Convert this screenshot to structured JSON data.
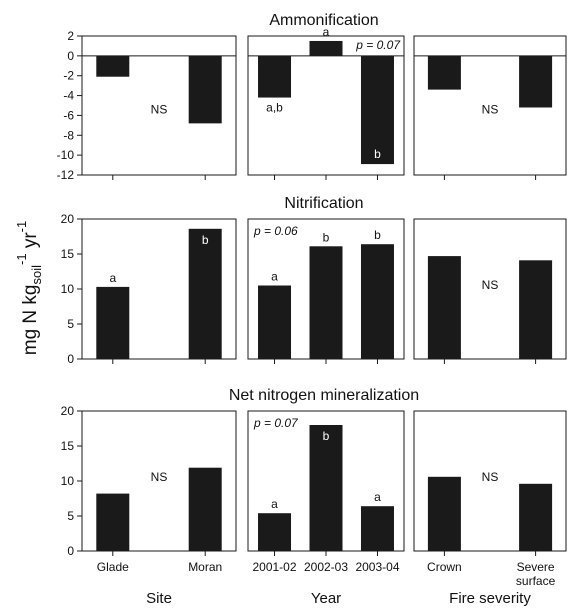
{
  "y_axis_label": {
    "main": "mg N kg",
    "subscript": "soil",
    "sup1": "-1",
    "mid": " yr",
    "sup2": "-1"
  },
  "group_labels": [
    "Site",
    "Year",
    "Fire severity"
  ],
  "colors": {
    "bar": "#1a1a1a",
    "axis": "#1a1a1a",
    "background": "#ffffff"
  },
  "chart_data": [
    {
      "type": "bar",
      "title": "Ammonification",
      "ylim": [
        -12,
        2
      ],
      "yticks": [
        2,
        0,
        -2,
        -4,
        -6,
        -8,
        -10,
        -12
      ],
      "zero_line": true,
      "panels": [
        {
          "group": "Site",
          "categories": [
            "Glade",
            "Moran"
          ],
          "values": [
            -2.1,
            -6.8
          ],
          "bar_labels": [
            "",
            ""
          ],
          "note": "NS",
          "p_value": ""
        },
        {
          "group": "Year",
          "categories": [
            "2001-02",
            "2002-03",
            "2003-04"
          ],
          "values": [
            -4.2,
            1.5,
            -10.9
          ],
          "bar_labels": [
            "a,b",
            "a",
            "b"
          ],
          "note": "",
          "p_value": "p = 0.07"
        },
        {
          "group": "Fire severity",
          "categories": [
            "Crown",
            "Severe surface"
          ],
          "values": [
            -3.4,
            -5.2
          ],
          "bar_labels": [
            "",
            ""
          ],
          "note": "NS",
          "p_value": ""
        }
      ]
    },
    {
      "type": "bar",
      "title": "Nitrification",
      "ylim": [
        0,
        20
      ],
      "yticks": [
        20,
        15,
        10,
        5,
        0
      ],
      "zero_line": false,
      "panels": [
        {
          "group": "Site",
          "categories": [
            "Glade",
            "Moran"
          ],
          "values": [
            10.3,
            18.6
          ],
          "bar_labels": [
            "a",
            "b"
          ],
          "note": "",
          "p_value": ""
        },
        {
          "group": "Year",
          "categories": [
            "2001-02",
            "2002-03",
            "2003-04"
          ],
          "values": [
            10.5,
            16.1,
            16.4
          ],
          "bar_labels": [
            "a",
            "b",
            "b"
          ],
          "note": "",
          "p_value": "p = 0.06"
        },
        {
          "group": "Fire severity",
          "categories": [
            "Crown",
            "Severe surface"
          ],
          "values": [
            14.7,
            14.1
          ],
          "bar_labels": [
            "",
            ""
          ],
          "note": "NS",
          "p_value": ""
        }
      ]
    },
    {
      "type": "bar",
      "title": "Net nitrogen mineralization",
      "ylim": [
        0,
        20
      ],
      "yticks": [
        20,
        15,
        10,
        5,
        0
      ],
      "zero_line": false,
      "panels": [
        {
          "group": "Site",
          "categories": [
            "Glade",
            "Moran"
          ],
          "values": [
            8.2,
            11.9
          ],
          "bar_labels": [
            "",
            ""
          ],
          "note": "NS",
          "p_value": ""
        },
        {
          "group": "Year",
          "categories": [
            "2001-02",
            "2002-03",
            "2003-04"
          ],
          "values": [
            5.4,
            18.0,
            6.4
          ],
          "bar_labels": [
            "a",
            "b",
            "a"
          ],
          "note": "",
          "p_value": "p = 0.07"
        },
        {
          "group": "Fire severity",
          "categories": [
            "Crown",
            "Severe surface"
          ],
          "values": [
            10.6,
            9.6
          ],
          "bar_labels": [
            "",
            ""
          ],
          "note": "NS",
          "p_value": ""
        }
      ]
    }
  ]
}
